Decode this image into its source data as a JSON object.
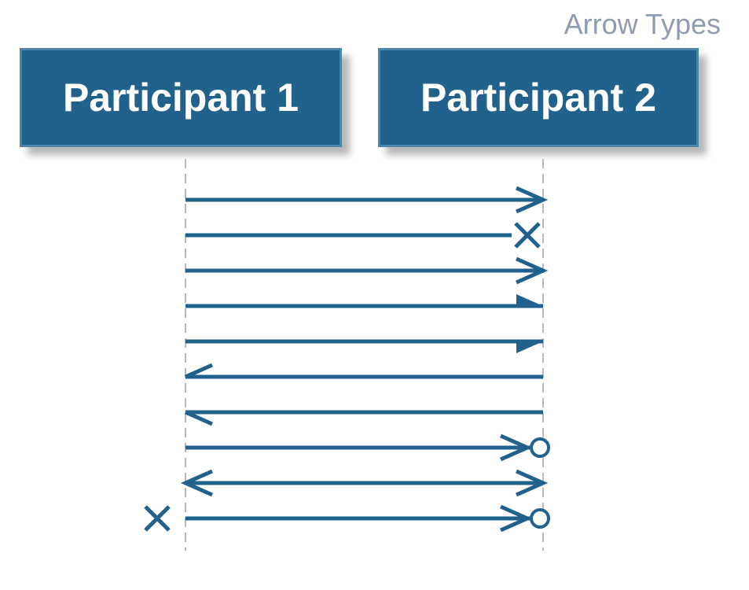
{
  "title": "Arrow Types",
  "participants": [
    {
      "id": "p1",
      "label": "Participant 1"
    },
    {
      "id": "p2",
      "label": "Participant 2"
    }
  ],
  "colors": {
    "box_fill": "#21628c",
    "box_border": "#4b86ad",
    "arrow": "#21628c",
    "lifeline": "#b5bac1",
    "title": "#8f9bb0"
  },
  "messages": [
    {
      "from": "p1",
      "to": "p2",
      "head_start": "none",
      "head_end": "open"
    },
    {
      "from": "p1",
      "to": "p2",
      "head_start": "none",
      "head_end": "cross"
    },
    {
      "from": "p1",
      "to": "p2",
      "head_start": "none",
      "head_end": "open"
    },
    {
      "from": "p1",
      "to": "p2",
      "head_start": "none",
      "head_end": "half-filled-top"
    },
    {
      "from": "p1",
      "to": "p2",
      "head_start": "none",
      "head_end": "half-filled-bottom"
    },
    {
      "from": "p2",
      "to": "p1",
      "head_start": "none",
      "head_end": "half-open-bottom"
    },
    {
      "from": "p2",
      "to": "p1",
      "head_start": "none",
      "head_end": "half-open-top"
    },
    {
      "from": "p1",
      "to": "p2",
      "head_start": "none",
      "head_end": "open-circle"
    },
    {
      "from": "p1",
      "to": "p2",
      "head_start": "open",
      "head_end": "open"
    },
    {
      "from": "p1",
      "to": "p2",
      "head_start": "cross",
      "head_end": "open-circle"
    }
  ]
}
